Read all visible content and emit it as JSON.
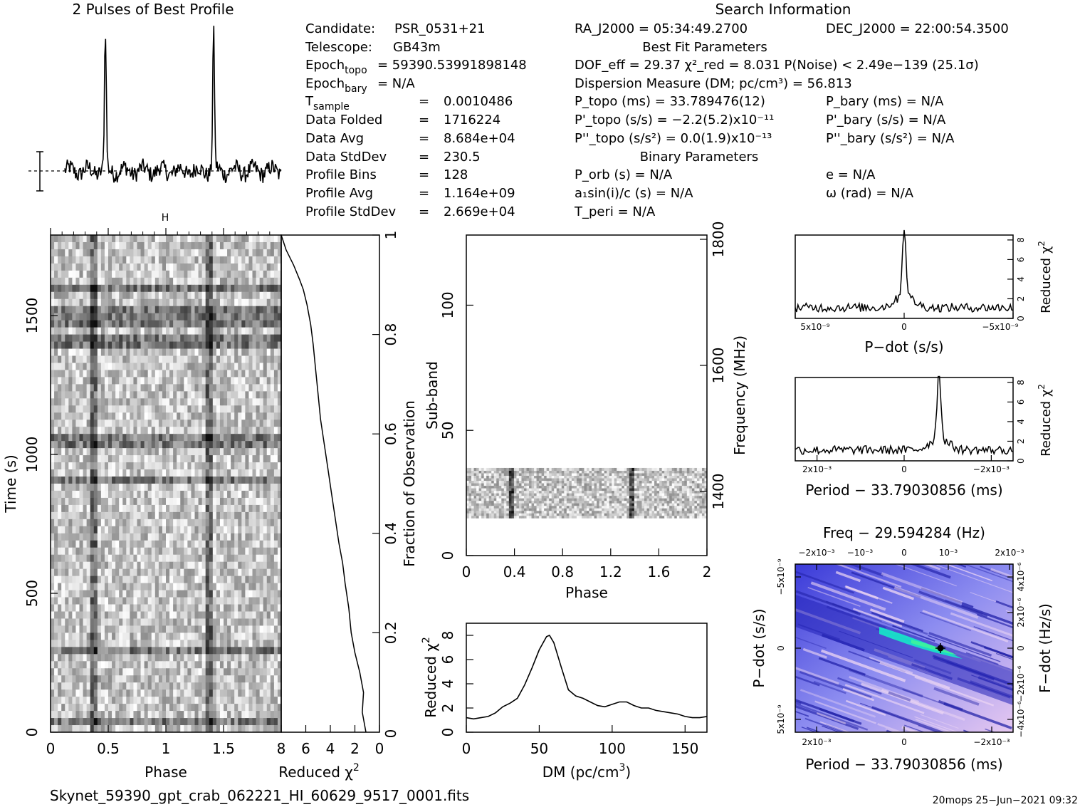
{
  "title_profile": "2 Pulses of Best Profile",
  "search_info_title": "Search Information",
  "left_info": [
    {
      "label": "Candidate:",
      "value": "PSR_0531+21"
    },
    {
      "label": "Telescope:",
      "value": "GB43m"
    },
    {
      "label": "Epoch_topo",
      "value": "= 59390.53991898148"
    },
    {
      "label": "Epoch_bary",
      "value": "= N/A"
    },
    {
      "label": "T_sample",
      "value": "0.0010486"
    },
    {
      "label": "Data Folded",
      "value": "1716224"
    },
    {
      "label": "Data Avg",
      "value": "8.684e+04"
    },
    {
      "label": "Data StdDev",
      "value": "230.5"
    },
    {
      "label": "Profile Bins",
      "value": "128"
    },
    {
      "label": "Profile Avg",
      "value": "1.164e+09"
    },
    {
      "label": "Profile StdDev",
      "value": "2.669e+04"
    }
  ],
  "ra": "RA_J2000 = 05:34:49.2700",
  "dec": "DEC_J2000 = 22:00:54.3500",
  "best_fit_title": "Best Fit Parameters",
  "dof": "DOF_eff = 29.37   χ²_red = 8.031   P(Noise) < 2.49e−139   (25.1σ)",
  "dm_line": "Dispersion Measure (DM; pc/cm³) = 56.813",
  "p_topo": "P_topo (ms) =  33.789476(12)",
  "pd_topo": "P'_topo (s/s) = −2.2(5.2)x10⁻¹¹",
  "pdd_topo": "P''_topo (s/s²) = 0.0(1.9)x10⁻¹³",
  "p_bary": "P_bary (ms) = N/A",
  "pd_bary": "P'_bary (s/s) = N/A",
  "pdd_bary": "P''_bary (s/s²) = N/A",
  "binary_title": "Binary Parameters",
  "porb": "P_orb (s) = N/A",
  "a1": "a₁sin(i)/c (s) = N/A",
  "tperi": "T_peri = N/A",
  "ecc": "e = N/A",
  "omega": "ω (rad) = N/A",
  "filename": "Skynet_59390_gpt_crab_062221_HI_60629_9517_0001.fits",
  "footer": "20mops 25−Jun−2021 09:32",
  "colors": {
    "pdot_dark": "#1a1ab4",
    "pdot_light": "#f2d6f2",
    "pdot_peak": "#18e0c8"
  },
  "chart_data": [
    {
      "type": "line",
      "name": "profile",
      "title": "2 Pulses of Best Profile",
      "x_range": [
        0,
        2
      ],
      "peaks": [
        0.375,
        1.375
      ]
    },
    {
      "type": "heatmap",
      "name": "time-phase",
      "xlabel": "Phase",
      "ylabel": "Time (s)",
      "xlim": [
        0,
        2
      ],
      "ylim": [
        0,
        1790
      ],
      "xticks": [
        "0",
        "0.5",
        "1",
        "1.5"
      ],
      "yticks": [
        "0",
        "500",
        "1000",
        "1500"
      ],
      "pulse_phases": [
        0.375,
        1.375
      ]
    },
    {
      "type": "line",
      "name": "time-chi2",
      "xlabel": "Reduced χ²",
      "ylabel": "Fraction of Observation",
      "xlim": [
        8,
        0
      ],
      "ylim": [
        0,
        1
      ],
      "xticks": [
        "8",
        "6",
        "4",
        "2",
        "0"
      ],
      "yticks": [
        "0.2",
        "0.4",
        "0.6",
        "0.8",
        "1"
      ],
      "x": [
        1.1,
        1.4,
        1.3,
        1.6,
        2.0,
        2.3,
        2.5,
        2.8,
        3.0,
        3.3,
        3.6,
        3.9,
        4.2,
        4.5,
        4.8,
        5.0,
        5.2,
        5.4,
        5.6,
        5.9,
        6.2,
        6.5,
        7.0,
        7.6,
        8.0
      ],
      "y": [
        0.0,
        0.04,
        0.08,
        0.12,
        0.16,
        0.2,
        0.25,
        0.3,
        0.34,
        0.38,
        0.43,
        0.48,
        0.53,
        0.58,
        0.63,
        0.68,
        0.73,
        0.78,
        0.82,
        0.86,
        0.89,
        0.91,
        0.94,
        0.97,
        1.0
      ]
    },
    {
      "type": "heatmap",
      "name": "subband-phase",
      "xlabel": "Phase",
      "ylabel": "Sub-band",
      "y2label": "Frequency (MHz)",
      "xlim": [
        0,
        2
      ],
      "ylim": [
        0,
        128
      ],
      "xticks": [
        "0",
        "0.4",
        "0.8",
        "1.2",
        "1.6",
        "2"
      ],
      "yticks": [
        "0",
        "50",
        "100"
      ],
      "y2ticks": [
        "1400",
        "1600",
        "1800"
      ],
      "band_subbands": [
        15,
        35
      ],
      "pulse_phases": [
        0.375,
        1.375
      ]
    },
    {
      "type": "line",
      "name": "dm-chi2",
      "xlabel": "DM (pc/cm³)",
      "ylabel": "Reduced χ²",
      "xlim": [
        0,
        165
      ],
      "ylim": [
        0,
        9
      ],
      "xticks": [
        "0",
        "50",
        "100",
        "150"
      ],
      "yticks": [
        "0",
        "2",
        "4",
        "6",
        "8"
      ],
      "x": [
        0,
        5,
        10,
        15,
        20,
        25,
        30,
        35,
        40,
        45,
        50,
        55,
        57,
        60,
        65,
        70,
        75,
        80,
        85,
        90,
        95,
        100,
        105,
        110,
        115,
        120,
        125,
        130,
        135,
        140,
        145,
        150,
        155,
        160,
        165
      ],
      "y": [
        1.2,
        1.1,
        1.2,
        1.3,
        1.6,
        2.1,
        2.4,
        2.8,
        3.9,
        5.3,
        6.8,
        7.9,
        8.0,
        7.4,
        5.4,
        3.5,
        3.0,
        2.8,
        2.5,
        2.2,
        2.1,
        2.3,
        2.5,
        2.5,
        2.2,
        2.0,
        2.0,
        1.8,
        1.7,
        1.6,
        1.5,
        1.3,
        1.2,
        1.2,
        1.3
      ]
    },
    {
      "type": "line",
      "name": "pdot-chi2",
      "xlabel": "P−dot (s/s)",
      "ylabel": "Reduced χ²",
      "xlim": [
        5e-09,
        -5e-09
      ],
      "ylim": [
        0,
        8.5
      ],
      "xticks": [
        "5x10⁻⁹",
        "0",
        "−5x10⁻⁹"
      ],
      "yticks": [
        "0",
        "2",
        "4",
        "6",
        "8"
      ],
      "peak_x": 0,
      "peak_y": 8.0,
      "baseline": 1.1
    },
    {
      "type": "line",
      "name": "period-chi2",
      "xlabel": "Period − 33.79030856 (ms)",
      "ylabel": "Reduced χ²",
      "xlim": [
        0.0025,
        -0.0025
      ],
      "ylim": [
        0,
        8.5
      ],
      "xticks": [
        "2x10⁻³",
        "0",
        "−2x10⁻³"
      ],
      "yticks": [
        "0",
        "2",
        "4",
        "6",
        "8"
      ],
      "peak_x": -0.0008,
      "peak_y": 8.0,
      "baseline": 1.1
    },
    {
      "type": "heatmap",
      "name": "period-pdot",
      "title": "Freq − 29.594284 (Hz)",
      "xlabel": "Period − 33.79030856 (ms)",
      "ylabel": "P−dot (s/s)",
      "y2label": "F−dot (Hz/s)",
      "xticks": [
        "2x10⁻³",
        "0",
        "−2x10⁻³"
      ],
      "x2ticks": [
        "−2x10⁻³",
        "−10⁻³",
        "0",
        "10⁻³",
        "2x10⁻³"
      ],
      "yticks": [
        "5x10⁻⁹",
        "0",
        "−5x10⁻⁹"
      ],
      "y2ticks": [
        "−4x10⁻⁶",
        "−2x10⁻⁶",
        "0",
        "2x10⁻⁶",
        "4x10⁻⁶"
      ],
      "best_period_offset": -0.0008,
      "best_pdot": 0
    }
  ]
}
